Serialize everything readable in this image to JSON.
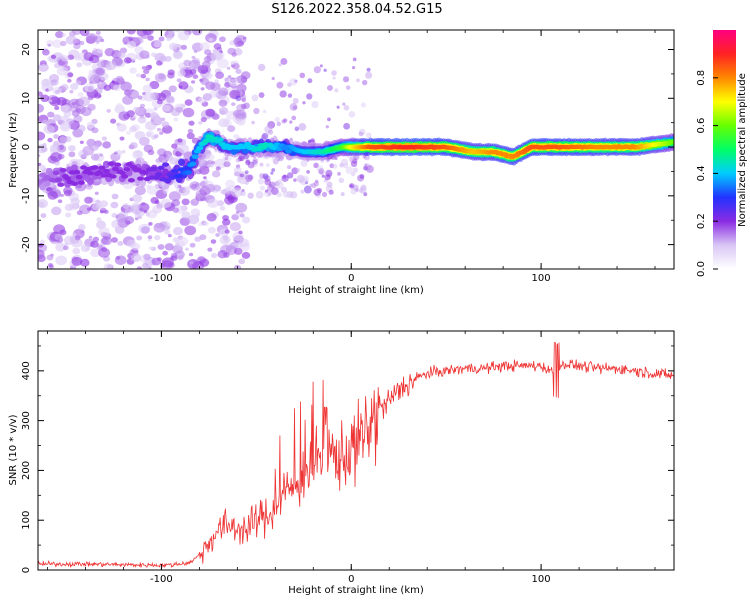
{
  "title": "S126.2022.358.04.52.G15",
  "chart_data": [
    {
      "type": "heatmap",
      "title": "S126.2022.358.04.52.G15",
      "xlabel": "Height of straight line (km)",
      "ylabel": "Frequency (Hz)",
      "xlim": [
        -165,
        170
      ],
      "ylim": [
        -25,
        24
      ],
      "x_ticks": [
        -100,
        0,
        100
      ],
      "x_tick_labels": [
        "-100",
        "0",
        "100"
      ],
      "y_ticks": [
        -20,
        -10,
        0,
        10,
        20
      ],
      "y_tick_labels": [
        "-20",
        "-10",
        "0",
        "10",
        "20"
      ],
      "colorbar": {
        "label": "Normalized spectral amplitude",
        "range": [
          0,
          1
        ],
        "ticks": [
          0.0,
          0.2,
          0.4,
          0.6,
          0.8
        ],
        "tick_labels": [
          "0.0",
          "0.2",
          "0.4",
          "0.6",
          "0.8"
        ],
        "colors": [
          "#ffffff",
          "#d9c6f5",
          "#8a2be2",
          "#2233ff",
          "#00ccff",
          "#00ff66",
          "#66ff00",
          "#ffff00",
          "#ff8800",
          "#ff2222",
          "#ff0080"
        ]
      },
      "ridge": {
        "x": [
          -165,
          -150,
          -130,
          -110,
          -95,
          -85,
          -80,
          -75,
          -65,
          -55,
          -45,
          -35,
          -25,
          -15,
          -5,
          0,
          10,
          30,
          50,
          65,
          75,
          85,
          95,
          110,
          130,
          150,
          170
        ],
        "f": [
          -7,
          -6,
          -5,
          -5,
          -6,
          -4,
          0,
          2,
          0,
          0,
          0,
          0,
          -1,
          -1,
          0,
          0,
          0,
          0,
          0,
          -1,
          -1,
          -2,
          0,
          0,
          0,
          0,
          1
        ],
        "amp": [
          0.15,
          0.2,
          0.2,
          0.2,
          0.25,
          0.35,
          0.4,
          0.45,
          0.4,
          0.4,
          0.45,
          0.35,
          0.4,
          0.45,
          0.55,
          0.7,
          0.85,
          0.9,
          0.85,
          0.75,
          0.8,
          0.8,
          0.85,
          0.85,
          0.8,
          0.8,
          0.6
        ]
      }
    },
    {
      "type": "line",
      "xlabel": "Height of straight line (km)",
      "ylabel": "SNR (10 * v/v)",
      "xlim": [
        -165,
        170
      ],
      "ylim": [
        0,
        480
      ],
      "x_ticks": [
        -100,
        0,
        100
      ],
      "x_tick_labels": [
        "-100",
        "0",
        "100"
      ],
      "y_ticks": [
        0,
        100,
        200,
        300,
        400
      ],
      "y_tick_labels": [
        "0",
        "100",
        "200",
        "300",
        "400"
      ],
      "color": "#ee3333",
      "series": [
        {
          "x": [
            -165,
            -140,
            -110,
            -95,
            -85,
            -80,
            -75,
            -70,
            -65,
            -60,
            -55,
            -50,
            -45,
            -40,
            -35,
            -30,
            -25,
            -20,
            -15,
            -10,
            -5,
            0,
            5,
            10,
            15,
            20,
            25,
            30,
            35,
            40,
            50,
            60,
            70,
            80,
            90,
            100,
            105,
            108,
            112,
            120,
            130,
            140,
            150,
            160,
            170
          ],
          "y": [
            12,
            12,
            10,
            10,
            15,
            30,
            55,
            80,
            90,
            85,
            80,
            100,
            110,
            120,
            160,
            160,
            200,
            210,
            230,
            230,
            230,
            240,
            260,
            290,
            320,
            340,
            360,
            375,
            385,
            395,
            400,
            405,
            405,
            410,
            410,
            410,
            400,
            395,
            415,
            410,
            405,
            405,
            400,
            395,
            390
          ]
        }
      ]
    }
  ]
}
